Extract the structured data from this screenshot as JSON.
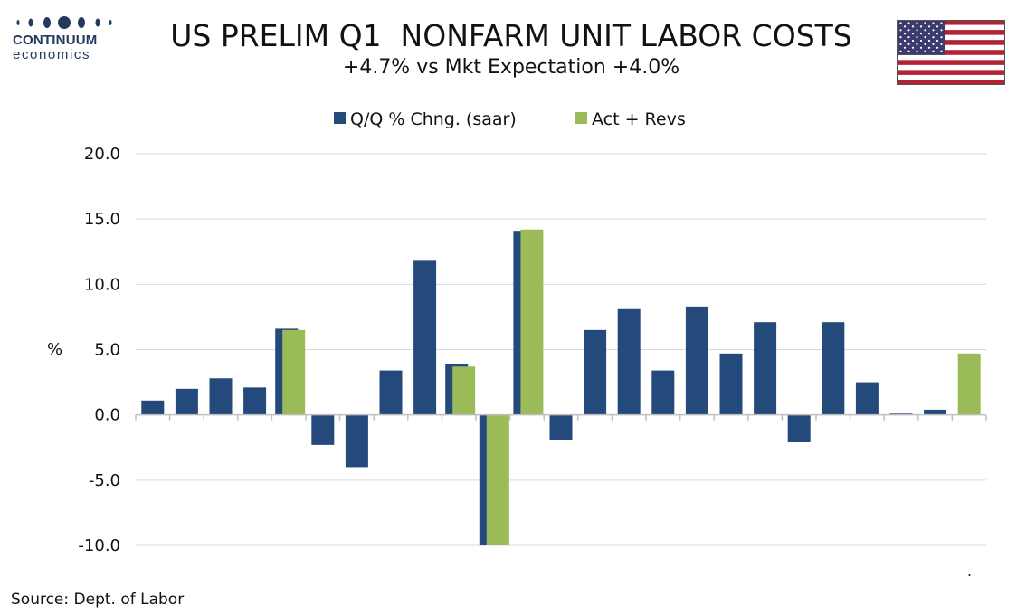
{
  "logo": {
    "word": "CONTINUUM",
    "sub": "economics"
  },
  "title": "US PRELIM Q1  NONFARM UNIT LABOR COSTS",
  "subtitle": "+4.7% vs Mkt Expectation +4.0%",
  "source": "Source: Dept. of Labor",
  "footnote_mark": ".",
  "colors": {
    "series1": "#244a7c",
    "series2": "#9bbb59",
    "grid": "#d9d9d9",
    "axis": "#bfbfbf",
    "brand": "#23395d"
  },
  "flag_icon": "us-flag-icon",
  "chart_data": {
    "type": "bar",
    "ylabel": "%",
    "ylim": [
      -10,
      20
    ],
    "yticks": [
      20,
      15,
      10,
      5,
      0,
      -5,
      -10
    ],
    "ytick_labels": [
      "20.0",
      "15.0",
      "10.0",
      "5.0",
      "0.0",
      "-5.0",
      "-10.0"
    ],
    "grid": true,
    "legend_position": "top",
    "categories": 25,
    "series": [
      {
        "name": "Q/Q % Chng. (saar)",
        "values": [
          1.1,
          2.0,
          2.8,
          2.1,
          6.6,
          -2.3,
          -4.0,
          3.4,
          11.8,
          3.9,
          -10.0,
          14.1,
          -1.9,
          6.5,
          8.1,
          3.4,
          8.3,
          4.7,
          7.1,
          -2.1,
          7.1,
          2.5,
          0.1,
          0.4,
          null
        ]
      },
      {
        "name": "Act + Revs",
        "values": [
          null,
          null,
          null,
          null,
          6.5,
          null,
          null,
          null,
          null,
          3.7,
          -10.0,
          14.2,
          null,
          null,
          null,
          null,
          null,
          null,
          null,
          null,
          null,
          null,
          null,
          null,
          4.7
        ]
      }
    ]
  }
}
